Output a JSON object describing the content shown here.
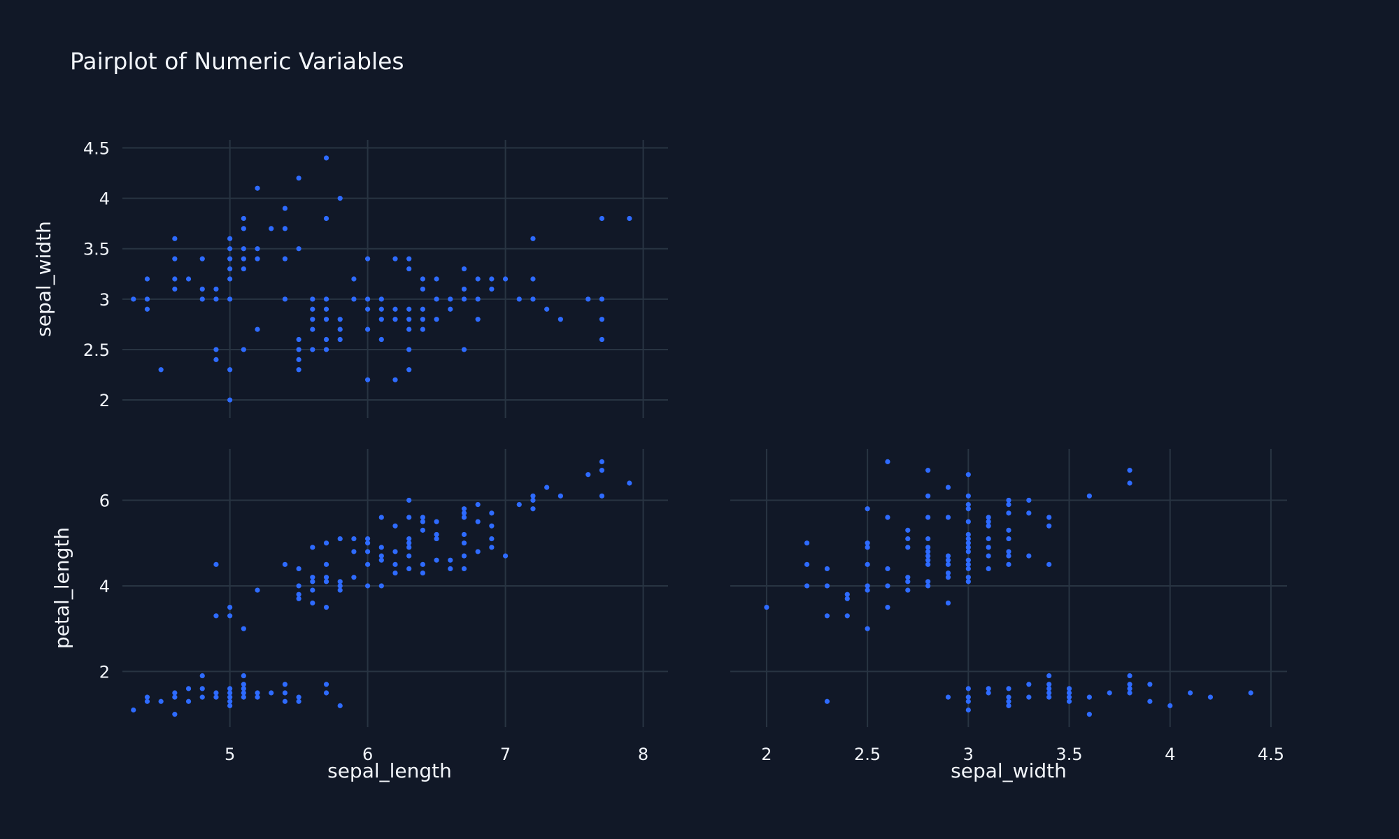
{
  "title": "Pairplot of Numeric Variables",
  "colors": {
    "background": "#111827",
    "grid": "#283442",
    "text": "#f2f5fa",
    "marker": "#2e6bff"
  },
  "chart_data": [
    {
      "type": "scatter",
      "id": "sl-sw",
      "xlabel": "",
      "ylabel": "sepal_width",
      "xlim": [
        4.22,
        8.18
      ],
      "ylim": [
        1.82,
        4.58
      ],
      "xticks": [],
      "yticks": [
        "2",
        "2.5",
        "3",
        "3.5",
        "4",
        "4.5"
      ],
      "grid": true,
      "points": [
        [
          4.3,
          3.0
        ],
        [
          4.4,
          2.9
        ],
        [
          4.4,
          3.0
        ],
        [
          4.4,
          3.2
        ],
        [
          4.5,
          2.3
        ],
        [
          4.6,
          3.1
        ],
        [
          4.6,
          3.2
        ],
        [
          4.6,
          3.4
        ],
        [
          4.6,
          3.6
        ],
        [
          4.7,
          3.2
        ],
        [
          4.8,
          3.0
        ],
        [
          4.8,
          3.1
        ],
        [
          4.8,
          3.4
        ],
        [
          4.9,
          2.4
        ],
        [
          4.9,
          2.5
        ],
        [
          4.9,
          3.0
        ],
        [
          4.9,
          3.1
        ],
        [
          5.0,
          2.0
        ],
        [
          5.0,
          2.3
        ],
        [
          5.0,
          3.0
        ],
        [
          5.0,
          3.2
        ],
        [
          5.0,
          3.3
        ],
        [
          5.0,
          3.4
        ],
        [
          5.0,
          3.5
        ],
        [
          5.0,
          3.6
        ],
        [
          5.1,
          2.5
        ],
        [
          5.1,
          3.3
        ],
        [
          5.1,
          3.4
        ],
        [
          5.1,
          3.5
        ],
        [
          5.1,
          3.7
        ],
        [
          5.1,
          3.8
        ],
        [
          5.2,
          2.7
        ],
        [
          5.2,
          3.4
        ],
        [
          5.2,
          3.5
        ],
        [
          5.2,
          4.1
        ],
        [
          5.3,
          3.7
        ],
        [
          5.4,
          3.0
        ],
        [
          5.4,
          3.4
        ],
        [
          5.4,
          3.7
        ],
        [
          5.4,
          3.9
        ],
        [
          5.5,
          2.3
        ],
        [
          5.5,
          2.4
        ],
        [
          5.5,
          2.5
        ],
        [
          5.5,
          2.6
        ],
        [
          5.5,
          3.5
        ],
        [
          5.5,
          4.2
        ],
        [
          5.6,
          2.5
        ],
        [
          5.6,
          2.7
        ],
        [
          5.6,
          2.8
        ],
        [
          5.6,
          2.9
        ],
        [
          5.6,
          3.0
        ],
        [
          5.7,
          2.5
        ],
        [
          5.7,
          2.6
        ],
        [
          5.7,
          2.8
        ],
        [
          5.7,
          2.9
        ],
        [
          5.7,
          3.0
        ],
        [
          5.7,
          3.8
        ],
        [
          5.7,
          4.4
        ],
        [
          5.8,
          2.6
        ],
        [
          5.8,
          2.7
        ],
        [
          5.8,
          2.8
        ],
        [
          5.8,
          4.0
        ],
        [
          5.9,
          3.0
        ],
        [
          5.9,
          3.2
        ],
        [
          6.0,
          2.2
        ],
        [
          6.0,
          2.7
        ],
        [
          6.0,
          2.9
        ],
        [
          6.0,
          3.0
        ],
        [
          6.0,
          3.4
        ],
        [
          6.1,
          2.6
        ],
        [
          6.1,
          2.8
        ],
        [
          6.1,
          2.9
        ],
        [
          6.1,
          3.0
        ],
        [
          6.2,
          2.2
        ],
        [
          6.2,
          2.8
        ],
        [
          6.2,
          2.9
        ],
        [
          6.2,
          3.4
        ],
        [
          6.3,
          2.3
        ],
        [
          6.3,
          2.5
        ],
        [
          6.3,
          2.7
        ],
        [
          6.3,
          2.8
        ],
        [
          6.3,
          2.9
        ],
        [
          6.3,
          3.3
        ],
        [
          6.3,
          3.4
        ],
        [
          6.4,
          2.7
        ],
        [
          6.4,
          2.8
        ],
        [
          6.4,
          2.9
        ],
        [
          6.4,
          3.1
        ],
        [
          6.4,
          3.2
        ],
        [
          6.5,
          2.8
        ],
        [
          6.5,
          3.0
        ],
        [
          6.5,
          3.2
        ],
        [
          6.6,
          2.9
        ],
        [
          6.6,
          3.0
        ],
        [
          6.7,
          2.5
        ],
        [
          6.7,
          3.0
        ],
        [
          6.7,
          3.1
        ],
        [
          6.7,
          3.3
        ],
        [
          6.8,
          2.8
        ],
        [
          6.8,
          3.0
        ],
        [
          6.8,
          3.2
        ],
        [
          6.9,
          3.1
        ],
        [
          6.9,
          3.2
        ],
        [
          7.0,
          3.2
        ],
        [
          7.1,
          3.0
        ],
        [
          7.2,
          3.0
        ],
        [
          7.2,
          3.2
        ],
        [
          7.2,
          3.6
        ],
        [
          7.3,
          2.9
        ],
        [
          7.4,
          2.8
        ],
        [
          7.6,
          3.0
        ],
        [
          7.7,
          2.6
        ],
        [
          7.7,
          2.8
        ],
        [
          7.7,
          3.0
        ],
        [
          7.7,
          3.8
        ],
        [
          7.9,
          3.8
        ]
      ]
    },
    {
      "type": "scatter",
      "id": "sl-pl",
      "xlabel": "sepal_length",
      "ylabel": "petal_length",
      "xlim": [
        4.22,
        8.18
      ],
      "ylim": [
        0.7,
        7.2
      ],
      "xticks": [
        "5",
        "6",
        "7",
        "8"
      ],
      "yticks": [
        "2",
        "4",
        "6"
      ],
      "grid": true,
      "points": [
        [
          4.3,
          1.1
        ],
        [
          4.4,
          1.3
        ],
        [
          4.4,
          1.4
        ],
        [
          4.5,
          1.3
        ],
        [
          4.6,
          1.0
        ],
        [
          4.6,
          1.4
        ],
        [
          4.6,
          1.5
        ],
        [
          4.7,
          1.3
        ],
        [
          4.7,
          1.6
        ],
        [
          4.8,
          1.4
        ],
        [
          4.8,
          1.6
        ],
        [
          4.8,
          1.9
        ],
        [
          4.9,
          1.4
        ],
        [
          4.9,
          1.5
        ],
        [
          4.9,
          3.3
        ],
        [
          4.9,
          4.5
        ],
        [
          5.0,
          1.2
        ],
        [
          5.0,
          1.3
        ],
        [
          5.0,
          1.4
        ],
        [
          5.0,
          1.5
        ],
        [
          5.0,
          1.6
        ],
        [
          5.0,
          3.3
        ],
        [
          5.0,
          3.5
        ],
        [
          5.1,
          1.4
        ],
        [
          5.1,
          1.5
        ],
        [
          5.1,
          1.6
        ],
        [
          5.1,
          1.7
        ],
        [
          5.1,
          1.9
        ],
        [
          5.1,
          3.0
        ],
        [
          5.2,
          1.4
        ],
        [
          5.2,
          1.5
        ],
        [
          5.2,
          3.9
        ],
        [
          5.3,
          1.5
        ],
        [
          5.4,
          1.3
        ],
        [
          5.4,
          1.5
        ],
        [
          5.4,
          1.7
        ],
        [
          5.4,
          4.5
        ],
        [
          5.5,
          1.3
        ],
        [
          5.5,
          1.4
        ],
        [
          5.5,
          3.7
        ],
        [
          5.5,
          3.8
        ],
        [
          5.5,
          4.0
        ],
        [
          5.5,
          4.4
        ],
        [
          5.6,
          3.6
        ],
        [
          5.6,
          3.9
        ],
        [
          5.6,
          4.1
        ],
        [
          5.6,
          4.2
        ],
        [
          5.6,
          4.9
        ],
        [
          5.7,
          1.5
        ],
        [
          5.7,
          1.7
        ],
        [
          5.7,
          3.5
        ],
        [
          5.7,
          4.1
        ],
        [
          5.7,
          4.2
        ],
        [
          5.7,
          4.5
        ],
        [
          5.7,
          5.0
        ],
        [
          5.8,
          1.2
        ],
        [
          5.8,
          3.9
        ],
        [
          5.8,
          4.0
        ],
        [
          5.8,
          4.1
        ],
        [
          5.8,
          5.1
        ],
        [
          5.9,
          4.2
        ],
        [
          5.9,
          4.8
        ],
        [
          5.9,
          5.1
        ],
        [
          6.0,
          4.0
        ],
        [
          6.0,
          4.5
        ],
        [
          6.0,
          4.8
        ],
        [
          6.0,
          5.0
        ],
        [
          6.0,
          5.1
        ],
        [
          6.1,
          4.0
        ],
        [
          6.1,
          4.6
        ],
        [
          6.1,
          4.7
        ],
        [
          6.1,
          4.9
        ],
        [
          6.1,
          5.6
        ],
        [
          6.2,
          4.3
        ],
        [
          6.2,
          4.5
        ],
        [
          6.2,
          4.8
        ],
        [
          6.2,
          5.4
        ],
        [
          6.3,
          4.4
        ],
        [
          6.3,
          4.7
        ],
        [
          6.3,
          4.9
        ],
        [
          6.3,
          5.0
        ],
        [
          6.3,
          5.1
        ],
        [
          6.3,
          5.6
        ],
        [
          6.3,
          6.0
        ],
        [
          6.4,
          4.3
        ],
        [
          6.4,
          4.5
        ],
        [
          6.4,
          5.3
        ],
        [
          6.4,
          5.5
        ],
        [
          6.4,
          5.6
        ],
        [
          6.5,
          4.6
        ],
        [
          6.5,
          5.1
        ],
        [
          6.5,
          5.2
        ],
        [
          6.5,
          5.5
        ],
        [
          6.6,
          4.4
        ],
        [
          6.6,
          4.6
        ],
        [
          6.7,
          4.4
        ],
        [
          6.7,
          4.7
        ],
        [
          6.7,
          5.0
        ],
        [
          6.7,
          5.2
        ],
        [
          6.7,
          5.6
        ],
        [
          6.7,
          5.7
        ],
        [
          6.7,
          5.8
        ],
        [
          6.8,
          4.8
        ],
        [
          6.8,
          5.5
        ],
        [
          6.8,
          5.9
        ],
        [
          6.9,
          4.9
        ],
        [
          6.9,
          5.1
        ],
        [
          6.9,
          5.4
        ],
        [
          6.9,
          5.7
        ],
        [
          7.0,
          4.7
        ],
        [
          7.1,
          5.9
        ],
        [
          7.2,
          5.8
        ],
        [
          7.2,
          6.0
        ],
        [
          7.2,
          6.1
        ],
        [
          7.3,
          6.3
        ],
        [
          7.4,
          6.1
        ],
        [
          7.6,
          6.6
        ],
        [
          7.7,
          6.1
        ],
        [
          7.7,
          6.7
        ],
        [
          7.7,
          6.9
        ],
        [
          7.9,
          6.4
        ]
      ]
    },
    {
      "type": "scatter",
      "id": "sw-pl",
      "xlabel": "sepal_width",
      "ylabel": "",
      "xlim": [
        1.82,
        4.58
      ],
      "ylim": [
        0.7,
        7.2
      ],
      "xticks": [
        "2",
        "2.5",
        "3",
        "3.5",
        "4",
        "4.5"
      ],
      "yticks": [],
      "grid": true,
      "points": [
        [
          2.0,
          3.5
        ],
        [
          2.2,
          4.0
        ],
        [
          2.2,
          4.5
        ],
        [
          2.2,
          5.0
        ],
        [
          2.3,
          1.3
        ],
        [
          2.3,
          3.3
        ],
        [
          2.3,
          4.0
        ],
        [
          2.3,
          4.4
        ],
        [
          2.4,
          3.3
        ],
        [
          2.4,
          3.7
        ],
        [
          2.4,
          3.8
        ],
        [
          2.5,
          3.0
        ],
        [
          2.5,
          3.9
        ],
        [
          2.5,
          4.0
        ],
        [
          2.5,
          4.5
        ],
        [
          2.5,
          4.9
        ],
        [
          2.5,
          5.0
        ],
        [
          2.5,
          5.8
        ],
        [
          2.6,
          3.5
        ],
        [
          2.6,
          4.0
        ],
        [
          2.6,
          4.4
        ],
        [
          2.6,
          5.6
        ],
        [
          2.6,
          6.9
        ],
        [
          2.7,
          3.9
        ],
        [
          2.7,
          4.1
        ],
        [
          2.7,
          4.2
        ],
        [
          2.7,
          4.9
        ],
        [
          2.7,
          5.1
        ],
        [
          2.7,
          5.3
        ],
        [
          2.8,
          4.0
        ],
        [
          2.8,
          4.1
        ],
        [
          2.8,
          4.5
        ],
        [
          2.8,
          4.6
        ],
        [
          2.8,
          4.7
        ],
        [
          2.8,
          4.8
        ],
        [
          2.8,
          4.9
        ],
        [
          2.8,
          5.1
        ],
        [
          2.8,
          5.6
        ],
        [
          2.8,
          6.1
        ],
        [
          2.8,
          6.7
        ],
        [
          2.9,
          1.4
        ],
        [
          2.9,
          3.6
        ],
        [
          2.9,
          4.2
        ],
        [
          2.9,
          4.3
        ],
        [
          2.9,
          4.5
        ],
        [
          2.9,
          4.6
        ],
        [
          2.9,
          4.7
        ],
        [
          2.9,
          5.6
        ],
        [
          2.9,
          6.3
        ],
        [
          3.0,
          1.1
        ],
        [
          3.0,
          1.3
        ],
        [
          3.0,
          1.4
        ],
        [
          3.0,
          1.6
        ],
        [
          3.0,
          4.1
        ],
        [
          3.0,
          4.2
        ],
        [
          3.0,
          4.4
        ],
        [
          3.0,
          4.5
        ],
        [
          3.0,
          4.6
        ],
        [
          3.0,
          4.8
        ],
        [
          3.0,
          4.9
        ],
        [
          3.0,
          5.0
        ],
        [
          3.0,
          5.1
        ],
        [
          3.0,
          5.2
        ],
        [
          3.0,
          5.5
        ],
        [
          3.0,
          5.8
        ],
        [
          3.0,
          5.9
        ],
        [
          3.0,
          6.1
        ],
        [
          3.0,
          6.6
        ],
        [
          3.1,
          1.5
        ],
        [
          3.1,
          1.6
        ],
        [
          3.1,
          4.4
        ],
        [
          3.1,
          4.7
        ],
        [
          3.1,
          4.9
        ],
        [
          3.1,
          5.1
        ],
        [
          3.1,
          5.4
        ],
        [
          3.1,
          5.5
        ],
        [
          3.1,
          5.6
        ],
        [
          3.2,
          1.2
        ],
        [
          3.2,
          1.3
        ],
        [
          3.2,
          1.4
        ],
        [
          3.2,
          1.6
        ],
        [
          3.2,
          4.5
        ],
        [
          3.2,
          4.7
        ],
        [
          3.2,
          4.8
        ],
        [
          3.2,
          5.1
        ],
        [
          3.2,
          5.3
        ],
        [
          3.2,
          5.7
        ],
        [
          3.2,
          5.9
        ],
        [
          3.2,
          6.0
        ],
        [
          3.3,
          1.4
        ],
        [
          3.3,
          1.7
        ],
        [
          3.3,
          4.7
        ],
        [
          3.3,
          5.7
        ],
        [
          3.3,
          6.0
        ],
        [
          3.4,
          1.4
        ],
        [
          3.4,
          1.5
        ],
        [
          3.4,
          1.6
        ],
        [
          3.4,
          1.7
        ],
        [
          3.4,
          1.9
        ],
        [
          3.4,
          4.5
        ],
        [
          3.4,
          5.4
        ],
        [
          3.4,
          5.6
        ],
        [
          3.5,
          1.3
        ],
        [
          3.5,
          1.4
        ],
        [
          3.5,
          1.5
        ],
        [
          3.5,
          1.6
        ],
        [
          3.6,
          1.0
        ],
        [
          3.6,
          1.4
        ],
        [
          3.6,
          6.1
        ],
        [
          3.7,
          1.5
        ],
        [
          3.8,
          1.5
        ],
        [
          3.8,
          1.6
        ],
        [
          3.8,
          1.7
        ],
        [
          3.8,
          1.9
        ],
        [
          3.8,
          6.4
        ],
        [
          3.8,
          6.7
        ],
        [
          3.9,
          1.3
        ],
        [
          3.9,
          1.7
        ],
        [
          4.0,
          1.2
        ],
        [
          4.1,
          1.5
        ],
        [
          4.2,
          1.4
        ],
        [
          4.4,
          1.5
        ]
      ]
    }
  ]
}
